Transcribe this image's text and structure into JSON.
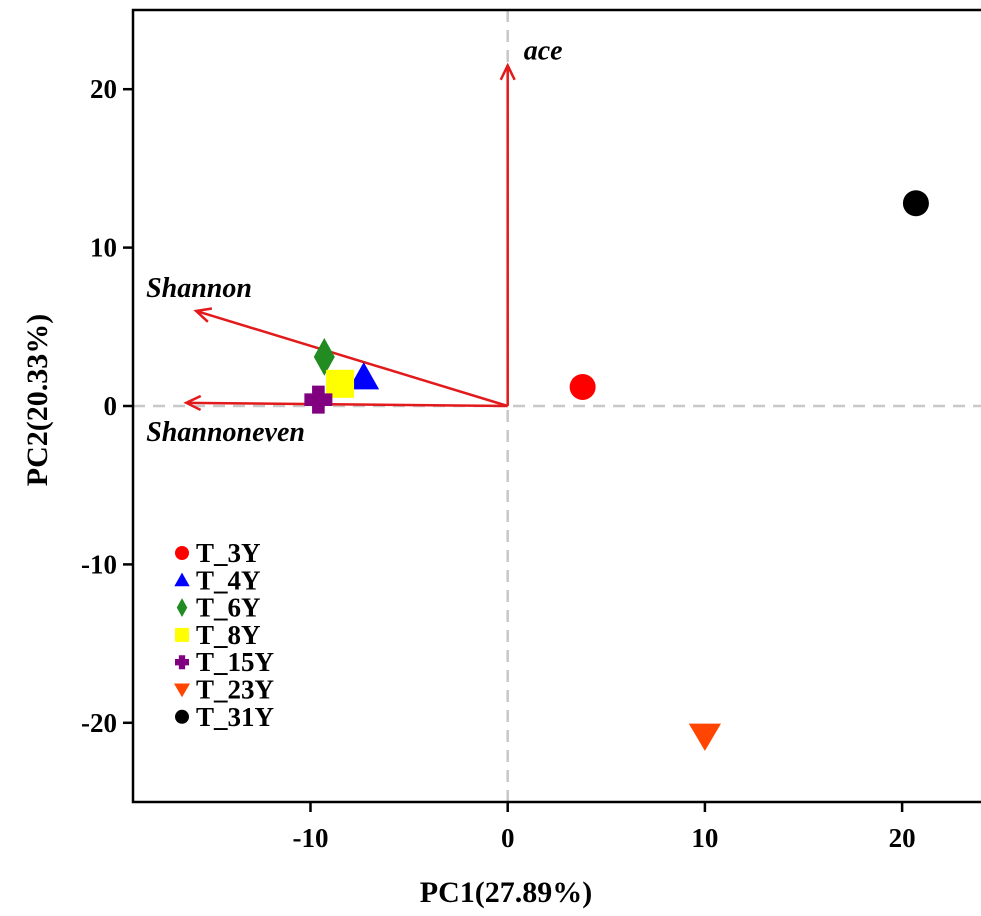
{
  "chart_data": {
    "type": "scatter",
    "title": "",
    "xlabel": "PC1(27.89%)",
    "ylabel": "PC2(20.33%)",
    "xlim": [
      -19,
      24
    ],
    "ylim": [
      -25,
      25
    ],
    "xticks": [
      -10,
      0,
      10,
      20
    ],
    "yticks": [
      -20,
      -10,
      0,
      10,
      20
    ],
    "xtick_labels": [
      "-10",
      "0",
      "10",
      "20"
    ],
    "ytick_labels": [
      "-20",
      "-10",
      "0",
      "10",
      "20"
    ],
    "grid": false,
    "zero_lines": true,
    "legend_position": "bottom-left",
    "series": [
      {
        "name": "T_3Y",
        "marker": "circle",
        "color": "#ff0000",
        "x": 3.8,
        "y": 1.2
      },
      {
        "name": "T_4Y",
        "marker": "triangle-up",
        "color": "#0000ff",
        "x": -7.3,
        "y": 1.8
      },
      {
        "name": "T_6Y",
        "marker": "diamond",
        "color": "#228b22",
        "x": -9.3,
        "y": 3.1
      },
      {
        "name": "T_8Y",
        "marker": "square",
        "color": "#ffff00",
        "x": -8.5,
        "y": 1.4
      },
      {
        "name": "T_15Y",
        "marker": "plus",
        "color": "#800080",
        "x": -9.6,
        "y": 0.4
      },
      {
        "name": "T_23Y",
        "marker": "triangle-down",
        "color": "#ff4500",
        "x": 10.0,
        "y": -20.8
      },
      {
        "name": "T_31Y",
        "marker": "circle",
        "color": "#000000",
        "x": 20.7,
        "y": 12.8
      }
    ],
    "arrows": [
      {
        "label": "ace",
        "x": 0,
        "y": 21.5
      },
      {
        "label": "Shannon",
        "x": -15.8,
        "y": 6.0
      },
      {
        "label": "Shannoneven",
        "x": -16.3,
        "y": 0.2
      }
    ],
    "arrow_color": "#e31a1c"
  }
}
